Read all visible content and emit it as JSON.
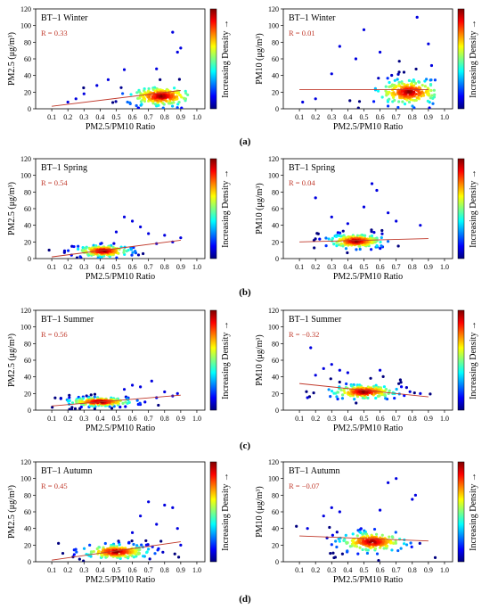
{
  "colors": {
    "trend": "#c0392b",
    "r_text": "#c0392b",
    "colormap": [
      "#00007f",
      "#0000ff",
      "#0080ff",
      "#00ffff",
      "#80ff80",
      "#ffff00",
      "#ff8000",
      "#ff0000",
      "#7f0000"
    ]
  },
  "colorbar_label": "Increasing Density →",
  "row_labels": [
    "(a)",
    "(b)",
    "(c)",
    "(d)"
  ],
  "chart_data": [
    {
      "id": "winter-pm25",
      "type": "scatter",
      "title": "BT–1 Winter",
      "r_label": "R = 0.33",
      "xlabel": "PM2.5/PM10 Ratio",
      "ylabel": "PM2.5 (μg/m³)",
      "xlim": [
        0,
        1.05
      ],
      "ylim": [
        0,
        120
      ],
      "xticks": [
        "0.1",
        "0.2",
        "0.3",
        "0.4",
        "0.5",
        "0.6",
        "0.7",
        "0.8",
        "0.9",
        "1.0"
      ],
      "yticks": [
        "0",
        "20",
        "40",
        "60",
        "80",
        "100",
        "120"
      ],
      "trend": [
        [
          0.1,
          3
        ],
        [
          0.9,
          22
        ]
      ],
      "cluster": {
        "cx": 0.78,
        "cy": 15,
        "sx": 0.12,
        "sy": 7
      },
      "outliers": [
        [
          0.9,
          73
        ],
        [
          0.85,
          92
        ],
        [
          0.88,
          68
        ],
        [
          0.75,
          48
        ],
        [
          0.55,
          47
        ],
        [
          0.45,
          35
        ],
        [
          0.38,
          28
        ],
        [
          0.3,
          18
        ],
        [
          0.25,
          12
        ],
        [
          0.2,
          8
        ]
      ]
    },
    {
      "id": "winter-pm10",
      "type": "scatter",
      "title": "BT–1 Winter",
      "r_label": "R = 0.01",
      "xlabel": "PM2.5/PM10 Ratio",
      "ylabel": "PM10 (μg/m³)",
      "xlim": [
        0,
        1.05
      ],
      "ylim": [
        0,
        120
      ],
      "xticks": [
        "0.1",
        "0.2",
        "0.3",
        "0.4",
        "0.5",
        "0.6",
        "0.7",
        "0.8",
        "0.9",
        "1.0"
      ],
      "yticks": [
        "0",
        "20",
        "40",
        "60",
        "80",
        "100",
        "120"
      ],
      "trend": [
        [
          0.1,
          23
        ],
        [
          0.9,
          23
        ]
      ],
      "cluster": {
        "cx": 0.78,
        "cy": 20,
        "sx": 0.12,
        "sy": 9
      },
      "outliers": [
        [
          0.83,
          110
        ],
        [
          0.5,
          95
        ],
        [
          0.35,
          75
        ],
        [
          0.6,
          68
        ],
        [
          0.92,
          52
        ],
        [
          0.9,
          78
        ],
        [
          0.45,
          60
        ],
        [
          0.3,
          42
        ],
        [
          0.2,
          12
        ],
        [
          0.12,
          8
        ]
      ]
    },
    {
      "id": "spring-pm25",
      "type": "scatter",
      "title": "BT–1 Spring",
      "r_label": "R = 0.54",
      "xlabel": "PM2.5/PM10 Ratio",
      "ylabel": "PM2.5 (μg/m³)",
      "xlim": [
        0,
        1.05
      ],
      "ylim": [
        0,
        120
      ],
      "xticks": [
        "0.1",
        "0.2",
        "0.3",
        "0.4",
        "0.5",
        "0.6",
        "0.7",
        "0.8",
        "0.9",
        "1.0"
      ],
      "yticks": [
        "0",
        "20",
        "40",
        "60",
        "80",
        "100",
        "120"
      ],
      "trend": [
        [
          0.1,
          2
        ],
        [
          0.9,
          22
        ]
      ],
      "cluster": {
        "cx": 0.42,
        "cy": 9,
        "sx": 0.1,
        "sy": 4
      },
      "outliers": [
        [
          0.55,
          50
        ],
        [
          0.6,
          45
        ],
        [
          0.65,
          38
        ],
        [
          0.7,
          30
        ],
        [
          0.8,
          28
        ],
        [
          0.9,
          25
        ],
        [
          0.85,
          20
        ],
        [
          0.75,
          18
        ],
        [
          0.5,
          32
        ]
      ]
    },
    {
      "id": "spring-pm10",
      "type": "scatter",
      "title": "BT–1 Spring",
      "r_label": "R = 0.04",
      "xlabel": "PM2.5/PM10 Ratio",
      "ylabel": "PM10 (μg/m³)",
      "xlim": [
        0,
        1.05
      ],
      "ylim": [
        0,
        120
      ],
      "xticks": [
        "0.1",
        "0.2",
        "0.3",
        "0.4",
        "0.5",
        "0.6",
        "0.7",
        "0.8",
        "0.9",
        "1.0"
      ],
      "yticks": [
        "0",
        "20",
        "40",
        "60",
        "80",
        "100",
        "120"
      ],
      "trend": [
        [
          0.1,
          20
        ],
        [
          0.9,
          24
        ]
      ],
      "cluster": {
        "cx": 0.45,
        "cy": 21,
        "sx": 0.1,
        "sy": 5
      },
      "outliers": [
        [
          0.55,
          90
        ],
        [
          0.58,
          82
        ],
        [
          0.2,
          73
        ],
        [
          0.5,
          62
        ],
        [
          0.3,
          50
        ],
        [
          0.65,
          55
        ],
        [
          0.7,
          45
        ],
        [
          0.85,
          40
        ],
        [
          0.4,
          42
        ]
      ]
    },
    {
      "id": "summer-pm25",
      "type": "scatter",
      "title": "BT–1 Summer",
      "r_label": "R = 0.56",
      "xlabel": "PM2.5/PM10 Ratio",
      "ylabel": "PM2.5 (μg/m³)",
      "xlim": [
        0,
        1.05
      ],
      "ylim": [
        0,
        120
      ],
      "xticks": [
        "0.1",
        "0.2",
        "0.3",
        "0.4",
        "0.5",
        "0.6",
        "0.7",
        "0.8",
        "0.9",
        "1.0"
      ],
      "yticks": [
        "0",
        "20",
        "40",
        "60",
        "80",
        "100",
        "120"
      ],
      "trend": [
        [
          0.1,
          5
        ],
        [
          0.9,
          18
        ]
      ],
      "cluster": {
        "cx": 0.4,
        "cy": 10,
        "sx": 0.12,
        "sy": 3
      },
      "outliers": [
        [
          0.6,
          30
        ],
        [
          0.65,
          28
        ],
        [
          0.72,
          35
        ],
        [
          0.8,
          22
        ],
        [
          0.88,
          20
        ],
        [
          0.55,
          25
        ],
        [
          0.75,
          15
        ],
        [
          0.85,
          17
        ]
      ]
    },
    {
      "id": "summer-pm10",
      "type": "scatter",
      "title": "BT–1 Summer",
      "r_label": "R = −0.32",
      "xlabel": "PM2.5/PM10 Ratio",
      "ylabel": "PM10 (μg/m³)",
      "xlim": [
        0,
        1.05
      ],
      "ylim": [
        0,
        120
      ],
      "xticks": [
        "0.1",
        "0.2",
        "0.3",
        "0.4",
        "0.5",
        "0.6",
        "0.7",
        "0.8",
        "0.9",
        "1.0"
      ],
      "yticks": [
        "0",
        "20",
        "40",
        "60",
        "80",
        "100",
        "120"
      ],
      "trend": [
        [
          0.1,
          32
        ],
        [
          0.9,
          16
        ]
      ],
      "cluster": {
        "cx": 0.5,
        "cy": 22,
        "sx": 0.12,
        "sy": 5
      },
      "outliers": [
        [
          0.17,
          75
        ],
        [
          0.3,
          55
        ],
        [
          0.25,
          50
        ],
        [
          0.35,
          48
        ],
        [
          0.4,
          45
        ],
        [
          0.6,
          48
        ],
        [
          0.2,
          42
        ],
        [
          0.15,
          15
        ],
        [
          0.85,
          20
        ]
      ]
    },
    {
      "id": "autumn-pm25",
      "type": "scatter",
      "title": "BT–1 Autumn",
      "r_label": "R = 0.45",
      "xlabel": "PM2.5/PM10 Ratio",
      "ylabel": "PM2.5 (μg/m³)",
      "xlim": [
        0,
        1.05
      ],
      "ylim": [
        0,
        120
      ],
      "xticks": [
        "0.1",
        "0.2",
        "0.3",
        "0.4",
        "0.5",
        "0.6",
        "0.7",
        "0.8",
        "0.9",
        "1.0"
      ],
      "yticks": [
        "0",
        "20",
        "40",
        "60",
        "80",
        "100",
        "120"
      ],
      "trend": [
        [
          0.1,
          2
        ],
        [
          0.9,
          24
        ]
      ],
      "cluster": {
        "cx": 0.5,
        "cy": 12,
        "sx": 0.12,
        "sy": 5
      },
      "outliers": [
        [
          0.7,
          72
        ],
        [
          0.8,
          68
        ],
        [
          0.85,
          65
        ],
        [
          0.75,
          45
        ],
        [
          0.65,
          55
        ],
        [
          0.88,
          40
        ],
        [
          0.9,
          20
        ],
        [
          0.6,
          35
        ]
      ]
    },
    {
      "id": "autumn-pm10",
      "type": "scatter",
      "title": "BT–1 Autumn",
      "r_label": "R = −0.07",
      "xlabel": "PM2.5/PM10 Ratio",
      "ylabel": "PM10 (μg/m³)",
      "xlim": [
        0,
        1.05
      ],
      "ylim": [
        0,
        120
      ],
      "xticks": [
        "0.1",
        "0.2",
        "0.3",
        "0.4",
        "0.5",
        "0.6",
        "0.7",
        "0.8",
        "0.9",
        "1.0"
      ],
      "yticks": [
        "0",
        "20",
        "40",
        "60",
        "80",
        "100",
        "120"
      ],
      "trend": [
        [
          0.1,
          31
        ],
        [
          0.9,
          25
        ]
      ],
      "cluster": {
        "cx": 0.55,
        "cy": 24,
        "sx": 0.12,
        "sy": 7
      },
      "outliers": [
        [
          0.7,
          100
        ],
        [
          0.65,
          95
        ],
        [
          0.82,
          80
        ],
        [
          0.8,
          75
        ],
        [
          0.3,
          65
        ],
        [
          0.35,
          60
        ],
        [
          0.6,
          62
        ],
        [
          0.25,
          55
        ],
        [
          0.15,
          40
        ]
      ]
    }
  ]
}
